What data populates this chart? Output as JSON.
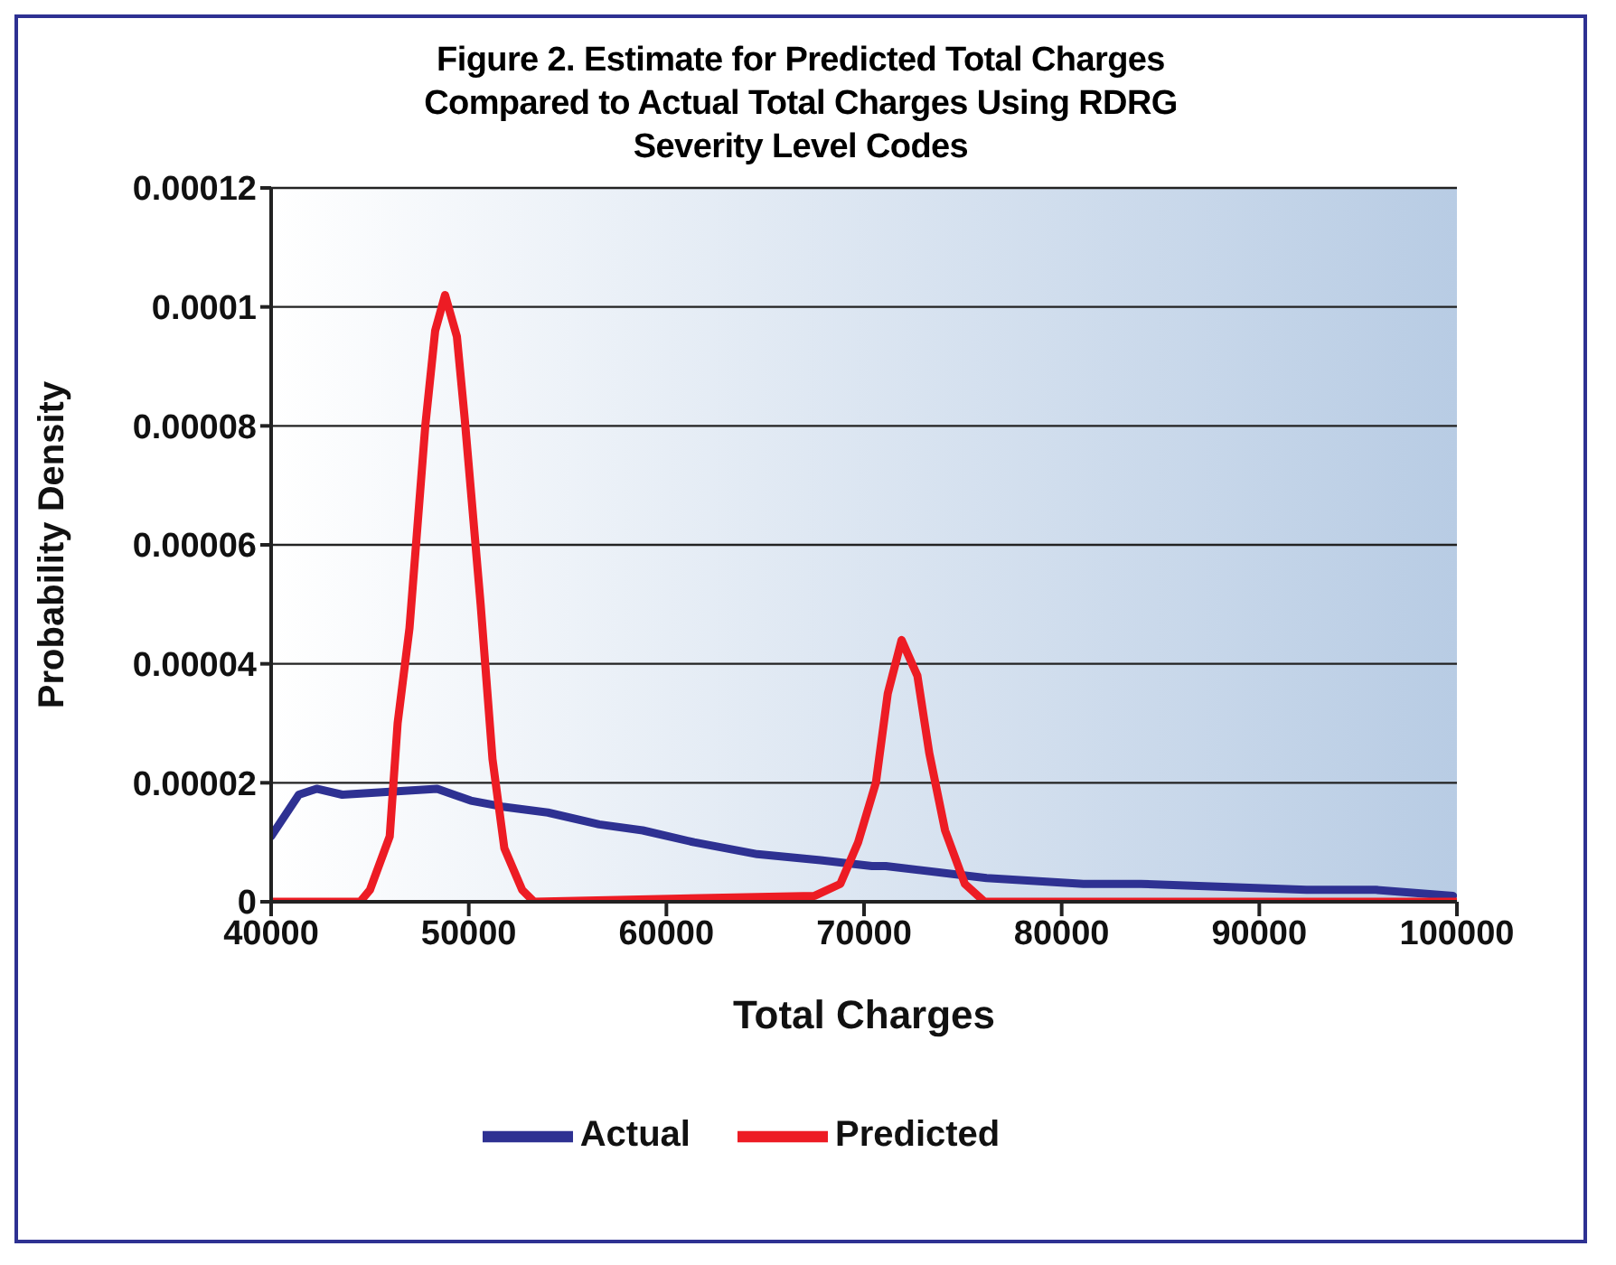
{
  "chart_data": {
    "type": "line",
    "title": "Figure 2. Estimate for Predicted Total Charges\nCompared to Actual Total Charges Using RDRG\nSeverity Level Codes",
    "xlabel": "Total Charges",
    "ylabel": "Probability Density",
    "xlim": [
      40000,
      100000
    ],
    "xticks": [
      40000,
      50000,
      60000,
      70000,
      80000,
      90000,
      100000
    ],
    "ylim": [
      0,
      0.00012
    ],
    "yticks": [
      0,
      {
        "value": 2e-05,
        "label": "0.00002"
      },
      {
        "value": 4e-05,
        "label": "0.00004"
      },
      {
        "value": 6e-05,
        "label": "0.00006"
      },
      {
        "value": 8e-05,
        "label": "0.00008"
      },
      0.0001,
      0.00012
    ],
    "grid": "y",
    "legend": "bottom",
    "marker": "none",
    "line_style": "solid",
    "series": [
      {
        "name": "Actual",
        "color": "#2e3192",
        "x": [
          40000,
          41400,
          42300,
          43600,
          48400,
          50100,
          51700,
          54000,
          56600,
          58800,
          61400,
          64600,
          67800,
          70400,
          71100,
          76200,
          81100,
          84000,
          92400,
          95900,
          99800
        ],
        "values": [
          1.1e-05,
          1.8e-05,
          1.9e-05,
          1.8e-05,
          1.9e-05,
          1.7e-05,
          1.6e-05,
          1.5e-05,
          1.3e-05,
          1.2e-05,
          1e-05,
          8e-06,
          7e-06,
          6e-06,
          6e-06,
          4e-06,
          3e-06,
          3e-06,
          2e-06,
          2e-06,
          1e-06
        ]
      },
      {
        "name": "Predicted",
        "color": "#ed1c24",
        "x": [
          40000,
          44500,
          45000,
          46000,
          46400,
          47000,
          47800,
          48300,
          48800,
          49400,
          49800,
          50600,
          51200,
          51800,
          52700,
          53300,
          67500,
          68800,
          69700,
          70600,
          71200,
          71900,
          72700,
          73300,
          74100,
          75100,
          76100,
          100000
        ],
        "values": [
          0,
          0,
          2e-06,
          1.1e-05,
          3e-05,
          4.6e-05,
          8e-05,
          9.6e-05,
          0.000102,
          9.5e-05,
          8.1e-05,
          5e-05,
          2.4e-05,
          9e-06,
          2e-06,
          0,
          1e-06,
          3e-06,
          1e-05,
          2e-05,
          3.5e-05,
          4.4e-05,
          3.8e-05,
          2.5e-05,
          1.2e-05,
          3e-06,
          0,
          0
        ]
      }
    ]
  }
}
